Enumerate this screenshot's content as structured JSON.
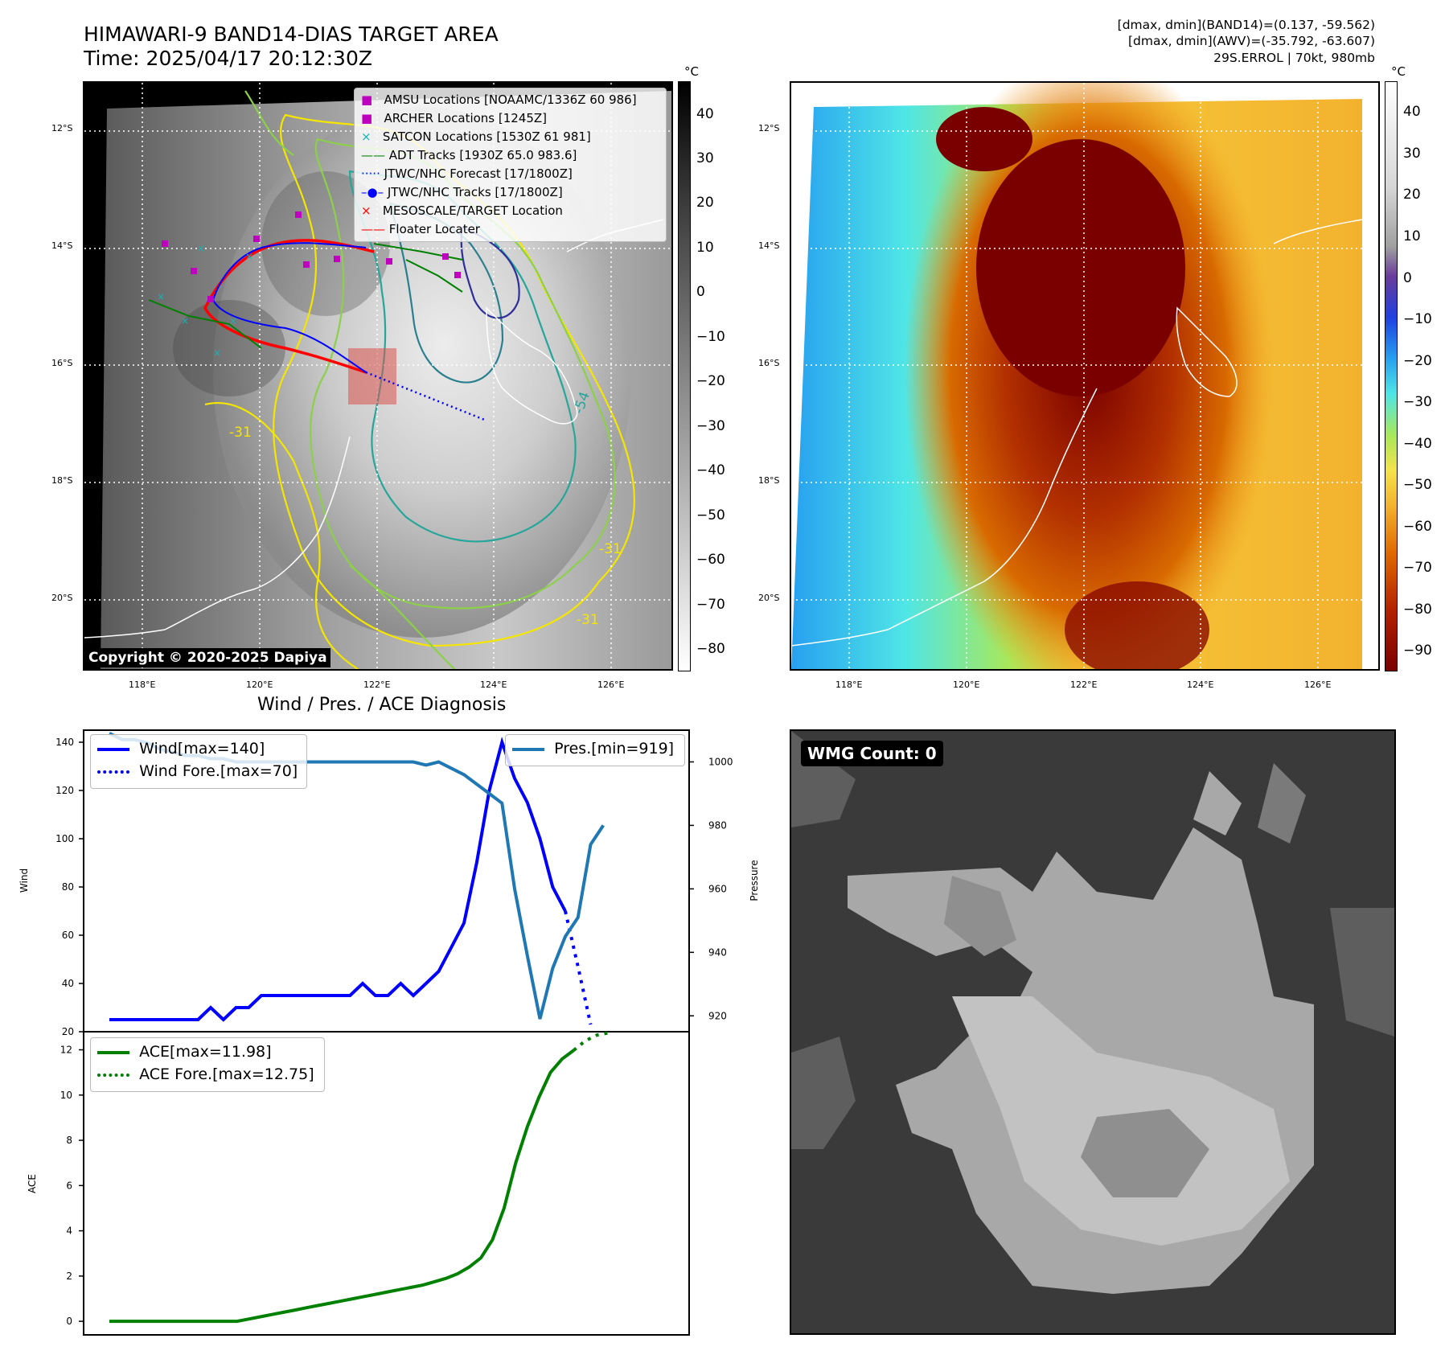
{
  "header": {
    "title_line1": "HIMAWARI-9 BAND14-DIAS TARGET AREA",
    "title_line2": "Time: 2025/04/17 20:12:30Z",
    "info_line1": "[dmax, dmin](BAND14)=(0.137, -59.562)",
    "info_line2": "[dmax, dmin](AWV)=(-35.792, -63.607)",
    "info_line3": "29S.ERROL | 70kt, 980mb"
  },
  "map": {
    "lat_labels": [
      "12°S",
      "14°S",
      "16°S",
      "18°S",
      "20°S"
    ],
    "lon_labels": [
      "118°E",
      "120°E",
      "122°E",
      "124°E",
      "126°E"
    ],
    "copyright": "Copyright © 2020-2025 Dapiya",
    "contour_labels": [
      "-31",
      "-54",
      "-31",
      "-31"
    ],
    "legend": [
      {
        "label": "AMSU Locations [NOAAMC/1336Z 60 986]",
        "color": "#bf00bf",
        "marker": "square"
      },
      {
        "label": "ARCHER Locations [1245Z]",
        "color": "#bf00bf",
        "marker": "square"
      },
      {
        "label": "SATCON Locations [1530Z 61 981]",
        "color": "#17b3b3",
        "marker": "x"
      },
      {
        "label": "ADT Tracks [1930Z 65.0 983.6]",
        "color": "#008000",
        "marker": "line"
      },
      {
        "label": "JTWC/NHC Forecast [17/1800Z]",
        "color": "#0000ff",
        "marker": "dotted"
      },
      {
        "label": "JTWC/NHC Tracks [17/1800Z]",
        "color": "#0000ff",
        "marker": "line-dot"
      },
      {
        "label": "MESOSCALE/TARGET Location",
        "color": "#ff0000",
        "marker": "x"
      },
      {
        "label": "Floater Locater",
        "color": "#ff0000",
        "marker": "line"
      }
    ],
    "colorbar_left": {
      "unit": "°C",
      "ticks": [
        "40",
        "30",
        "20",
        "10",
        "0",
        "−10",
        "−20",
        "−30",
        "−40",
        "−50",
        "−60",
        "−70",
        "−80"
      ]
    },
    "colorbar_right": {
      "unit": "°C",
      "ticks": [
        "40",
        "30",
        "20",
        "10",
        "0",
        "−10",
        "−20",
        "−30",
        "−40",
        "−50",
        "−60",
        "−70",
        "−80",
        "−90"
      ]
    }
  },
  "wmg": {
    "label": "WMG Count: 0"
  },
  "chart_data": [
    {
      "type": "line",
      "title": "Wind / Pres. / ACE Diagnosis",
      "ylabel": "Wind",
      "ylim": [
        20,
        145
      ],
      "yticks": [
        "140",
        "120",
        "100",
        "80",
        "60",
        "40",
        "20"
      ],
      "series": [
        {
          "name": "Wind[max=140]",
          "color": "#0000ff",
          "style": "solid",
          "values": [
            25,
            25,
            25,
            25,
            25,
            25,
            25,
            25,
            30,
            25,
            30,
            30,
            35,
            35,
            35,
            35,
            35,
            35,
            35,
            35,
            40,
            35,
            35,
            40,
            35,
            40,
            45,
            55,
            65,
            90,
            120,
            140,
            125,
            115,
            100,
            80,
            70
          ]
        },
        {
          "name": "Wind Fore.[max=70]",
          "color": "#0000ff",
          "style": "dotted",
          "values_start_index": 36,
          "values": [
            70,
            47,
            23
          ]
        }
      ],
      "secondary": {
        "ylabel": "Pressure",
        "ylim": [
          915,
          1010
        ],
        "yticks": [
          "1000",
          "980",
          "960",
          "940",
          "920"
        ],
        "series": [
          {
            "name": "Pres.[min=919]",
            "color": "#1f77b4",
            "values": [
              1009,
              1007,
              1007,
              1006,
              1004,
              1003,
              1002,
              1002,
              1001,
              1001,
              1000,
              1000,
              1000,
              1000,
              1000,
              1000,
              1000,
              1000,
              1000,
              1000,
              1000,
              1000,
              1000,
              1000,
              1000,
              999,
              1000,
              998,
              996,
              993,
              990,
              987,
              960,
              939,
              919,
              935,
              945,
              951,
              974,
              980
            ]
          }
        ]
      }
    },
    {
      "type": "line",
      "ylabel": "ACE",
      "ylim": [
        -0.6,
        12.8
      ],
      "yticks": [
        "12",
        "10",
        "8",
        "6",
        "4",
        "2",
        "0"
      ],
      "series": [
        {
          "name": "ACE[max=11.98]",
          "color": "#008000",
          "style": "solid",
          "values": [
            0,
            0,
            0,
            0,
            0,
            0,
            0,
            0,
            0,
            0,
            0,
            0,
            0.1,
            0.2,
            0.3,
            0.4,
            0.5,
            0.6,
            0.7,
            0.8,
            0.9,
            1.0,
            1.1,
            1.2,
            1.3,
            1.4,
            1.5,
            1.6,
            1.75,
            1.9,
            2.1,
            2.4,
            2.8,
            3.6,
            5.0,
            7.0,
            8.6,
            9.9,
            11.0,
            11.6,
            11.98
          ]
        },
        {
          "name": "ACE Fore.[max=12.75]",
          "color": "#008000",
          "style": "dotted",
          "values_start_index": 40,
          "values": [
            11.98,
            12.4,
            12.65,
            12.75
          ]
        }
      ]
    }
  ]
}
